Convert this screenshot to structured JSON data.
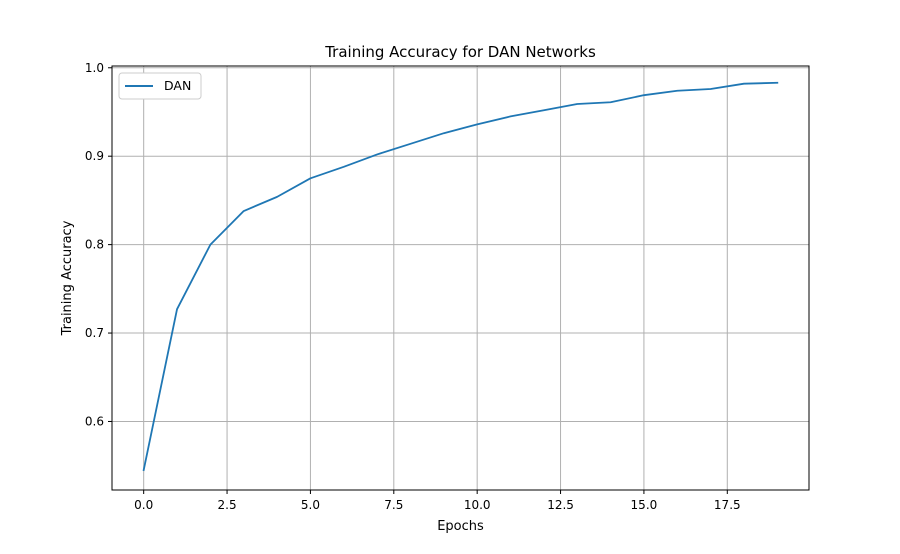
{
  "chart_data": {
    "type": "line",
    "title": "Training Accuracy for DAN Networks",
    "xlabel": "Epochs",
    "ylabel": "Training Accuracy",
    "xlim": [
      -0.95,
      19.95
    ],
    "ylim": [
      0.5225,
      1.002
    ],
    "x_ticks": [
      0.0,
      2.5,
      5.0,
      7.5,
      10.0,
      12.5,
      15.0,
      17.5
    ],
    "x_tick_labels": [
      "0.0",
      "2.5",
      "5.0",
      "7.5",
      "10.0",
      "12.5",
      "15.0",
      "17.5"
    ],
    "y_ticks": [
      0.6,
      0.7,
      0.8,
      0.9,
      1.0
    ],
    "y_tick_labels": [
      "0.6",
      "0.7",
      "0.8",
      "0.9",
      "1.0"
    ],
    "grid": true,
    "legend_position": "top-left",
    "series": [
      {
        "name": "DAN",
        "color": "#1f77b4",
        "x": [
          0,
          1,
          2,
          3,
          4,
          5,
          6,
          7,
          8,
          9,
          10,
          11,
          12,
          13,
          14,
          15,
          16,
          17,
          18,
          19
        ],
        "y": [
          0.545,
          0.727,
          0.8,
          0.838,
          0.854,
          0.875,
          0.888,
          0.902,
          0.914,
          0.926,
          0.936,
          0.945,
          0.952,
          0.959,
          0.961,
          0.969,
          0.974,
          0.976,
          0.982,
          0.983
        ]
      }
    ]
  }
}
